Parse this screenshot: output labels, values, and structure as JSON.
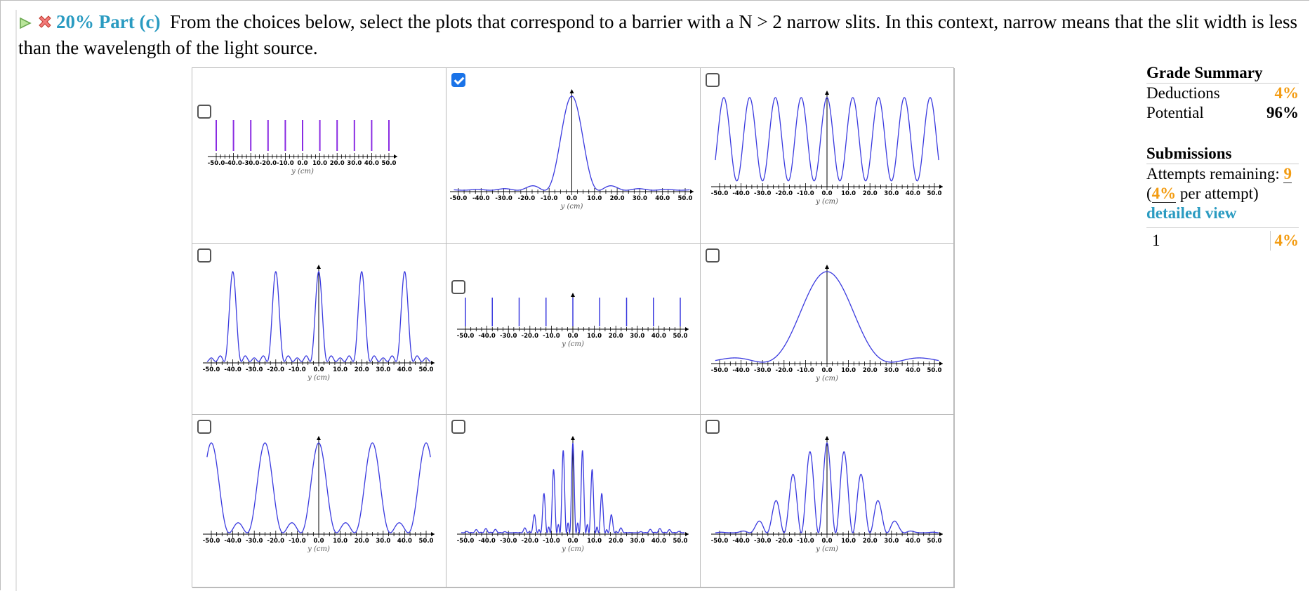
{
  "question": {
    "percent_part": "20% Part (c)",
    "text": "From the choices below, select the plots that correspond to a barrier with a N > 2 narrow slits. In this context, narrow means that the slit width is less than the wavelength of the light source."
  },
  "plot_axis": {
    "ticks": [
      "-50.0",
      "-40.0",
      "-30.0",
      "-20.0",
      "-10.0",
      "0.0",
      "10.0",
      "20.0",
      "30.0",
      "40.0",
      "50.0"
    ],
    "xlabel": "y (cm)"
  },
  "choices": [
    {
      "pattern": "lines",
      "checked": false
    },
    {
      "pattern": "single_slit_wide",
      "checked": true
    },
    {
      "pattern": "double_slit",
      "checked": false
    },
    {
      "pattern": "multi_slit_5",
      "checked": false
    },
    {
      "pattern": "grating_spikes",
      "checked": false
    },
    {
      "pattern": "single_slit_narrow",
      "checked": false
    },
    {
      "pattern": "multi_slit_3",
      "checked": false
    },
    {
      "pattern": "multi_slit_envelope",
      "checked": false
    },
    {
      "pattern": "double_slit_envelope",
      "checked": false
    }
  ],
  "summary": {
    "grade_title": "Grade Summary",
    "deductions_label": "Deductions",
    "deductions_value": "4%",
    "potential_label": "Potential",
    "potential_value": "96%",
    "submissions_title": "Submissions",
    "attempts_label": "Attempts remaining:",
    "attempts_value": "9",
    "per_attempt_open": "(",
    "per_attempt_pct": "4%",
    "per_attempt_rest": " per attempt)",
    "detailed_view": "detailed view",
    "history": [
      {
        "num": "1",
        "value": "4%"
      }
    ]
  },
  "colors": {
    "curve": "#3a3adf",
    "lines": "#8a2be2",
    "accent": "#2a9bc1",
    "orange": "#f39c12"
  }
}
